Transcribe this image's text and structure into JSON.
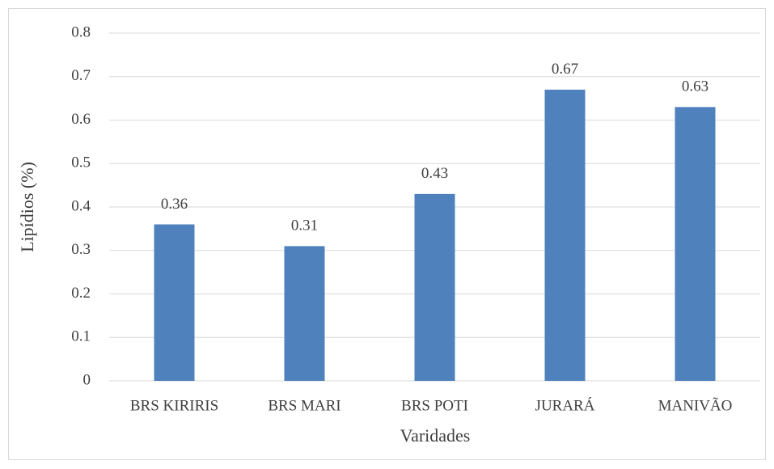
{
  "chart_data": {
    "type": "bar",
    "categories": [
      "BRS KIRIRIS",
      "BRS MARI",
      "BRS POTI",
      "JURARÁ",
      "MANIVÃO"
    ],
    "values": [
      0.36,
      0.31,
      0.43,
      0.67,
      0.63
    ],
    "color": "#4f81bd",
    "x_label": "Varidades",
    "y_label": "Lipídios (%)",
    "ylim": [
      0,
      0.8
    ],
    "yticks": [
      0,
      0.1,
      0.2,
      0.3,
      0.4,
      0.5,
      0.6,
      0.7,
      0.8
    ],
    "grid": true
  }
}
